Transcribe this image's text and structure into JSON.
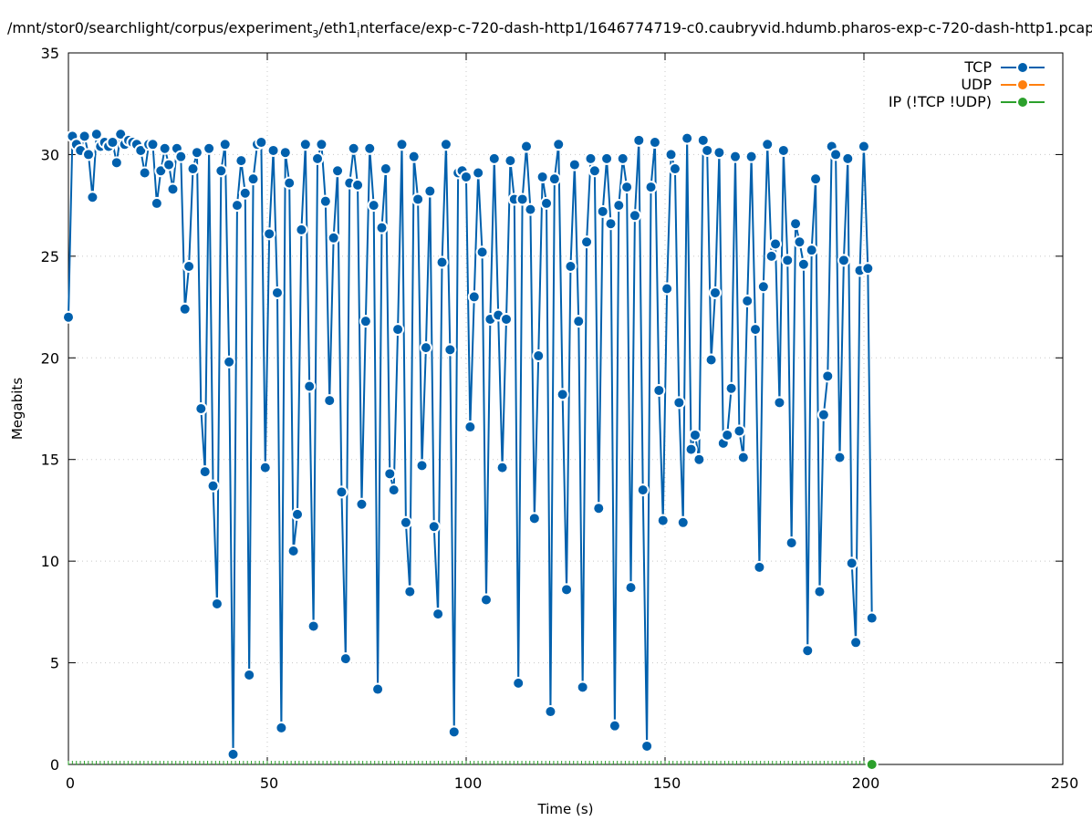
{
  "chart_data": {
    "type": "line",
    "title_parts": [
      "/mnt/stor0/searchlight/corpus/experiment",
      "3",
      "/eth1",
      "i",
      "nterface/exp-c-720-dash-http1/1646774719-c0.caubryvid.hdumb.pharos-exp-c-720-dash-http1.pcap"
    ],
    "xlabel": "Time (s)",
    "ylabel": "Megabits",
    "xlim": [
      0,
      250
    ],
    "ylim": [
      0,
      35
    ],
    "xticks": [
      "0",
      "50",
      "100",
      "150",
      "200",
      "250"
    ],
    "yticks": [
      "0",
      "5",
      "10",
      "15",
      "20",
      "25",
      "30",
      "35"
    ],
    "grid": true,
    "legend_position": "top-right",
    "x_step": 1.01,
    "series": [
      {
        "name": "TCP",
        "color": "#0060ad",
        "values": [
          22.0,
          30.9,
          30.5,
          30.2,
          30.9,
          30.0,
          27.9,
          31.0,
          30.4,
          30.6,
          30.4,
          30.6,
          29.6,
          31.0,
          30.5,
          30.7,
          30.6,
          30.5,
          30.2,
          29.1,
          30.5,
          30.5,
          27.6,
          29.2,
          30.3,
          29.5,
          28.3,
          30.3,
          29.9,
          22.4,
          24.5,
          29.3,
          30.1,
          17.5,
          14.4,
          30.3,
          13.7,
          7.9,
          29.2,
          30.5,
          19.8,
          0.5,
          27.5,
          29.7,
          28.1,
          4.4,
          28.8,
          30.5,
          30.6,
          14.6,
          26.1,
          30.2,
          23.2,
          1.8,
          30.1,
          28.6,
          10.5,
          12.3,
          26.3,
          30.5,
          18.6,
          6.8,
          29.8,
          30.5,
          27.7,
          17.9,
          25.9,
          29.2,
          13.4,
          5.2,
          28.6,
          30.3,
          28.5,
          12.8,
          21.8,
          30.3,
          27.5,
          3.7,
          26.4,
          29.3,
          14.3,
          13.5,
          21.4,
          30.5,
          11.9,
          8.5,
          29.9,
          27.8,
          14.7,
          20.5,
          28.2,
          11.7,
          7.4,
          24.7,
          30.5,
          20.4,
          1.6,
          29.1,
          29.2,
          28.9,
          16.6,
          23.0,
          29.1,
          25.2,
          8.1,
          21.9,
          29.8,
          22.1,
          14.6,
          21.9,
          29.7,
          27.8,
          4.0,
          27.8,
          30.4,
          27.3,
          12.1,
          20.1,
          28.9,
          27.6,
          2.6,
          28.8,
          30.5,
          18.2,
          8.6,
          24.5,
          29.5,
          21.8,
          3.8,
          25.7,
          29.8,
          29.2,
          12.6,
          27.2,
          29.8,
          26.6,
          1.9,
          27.5,
          29.8,
          28.4,
          8.7,
          27.0,
          30.7,
          13.5,
          0.9,
          28.4,
          30.6,
          18.4,
          12.0,
          23.4,
          30.0,
          29.3,
          17.8,
          11.9,
          30.8,
          15.5,
          16.2,
          15.0,
          30.7,
          30.2,
          19.9,
          23.2,
          30.1,
          15.8,
          16.2,
          18.5,
          29.9,
          16.4,
          15.1,
          22.8,
          29.9,
          21.4,
          9.7,
          23.5,
          30.5,
          25.0,
          25.6,
          17.8,
          30.2,
          24.8,
          10.9,
          26.6,
          25.7,
          24.6,
          5.6,
          25.3,
          28.8,
          8.5,
          17.2,
          19.1,
          30.4,
          30.0,
          15.1,
          24.8,
          29.8,
          9.9,
          6.0,
          24.3,
          30.4,
          24.4,
          7.2
        ]
      },
      {
        "name": "UDP",
        "color": "#ff7f0e",
        "values": []
      },
      {
        "name": "IP (!TCP  !UDP)",
        "color": "#2ca02c",
        "x_end": 202,
        "values_const": 0
      }
    ]
  }
}
